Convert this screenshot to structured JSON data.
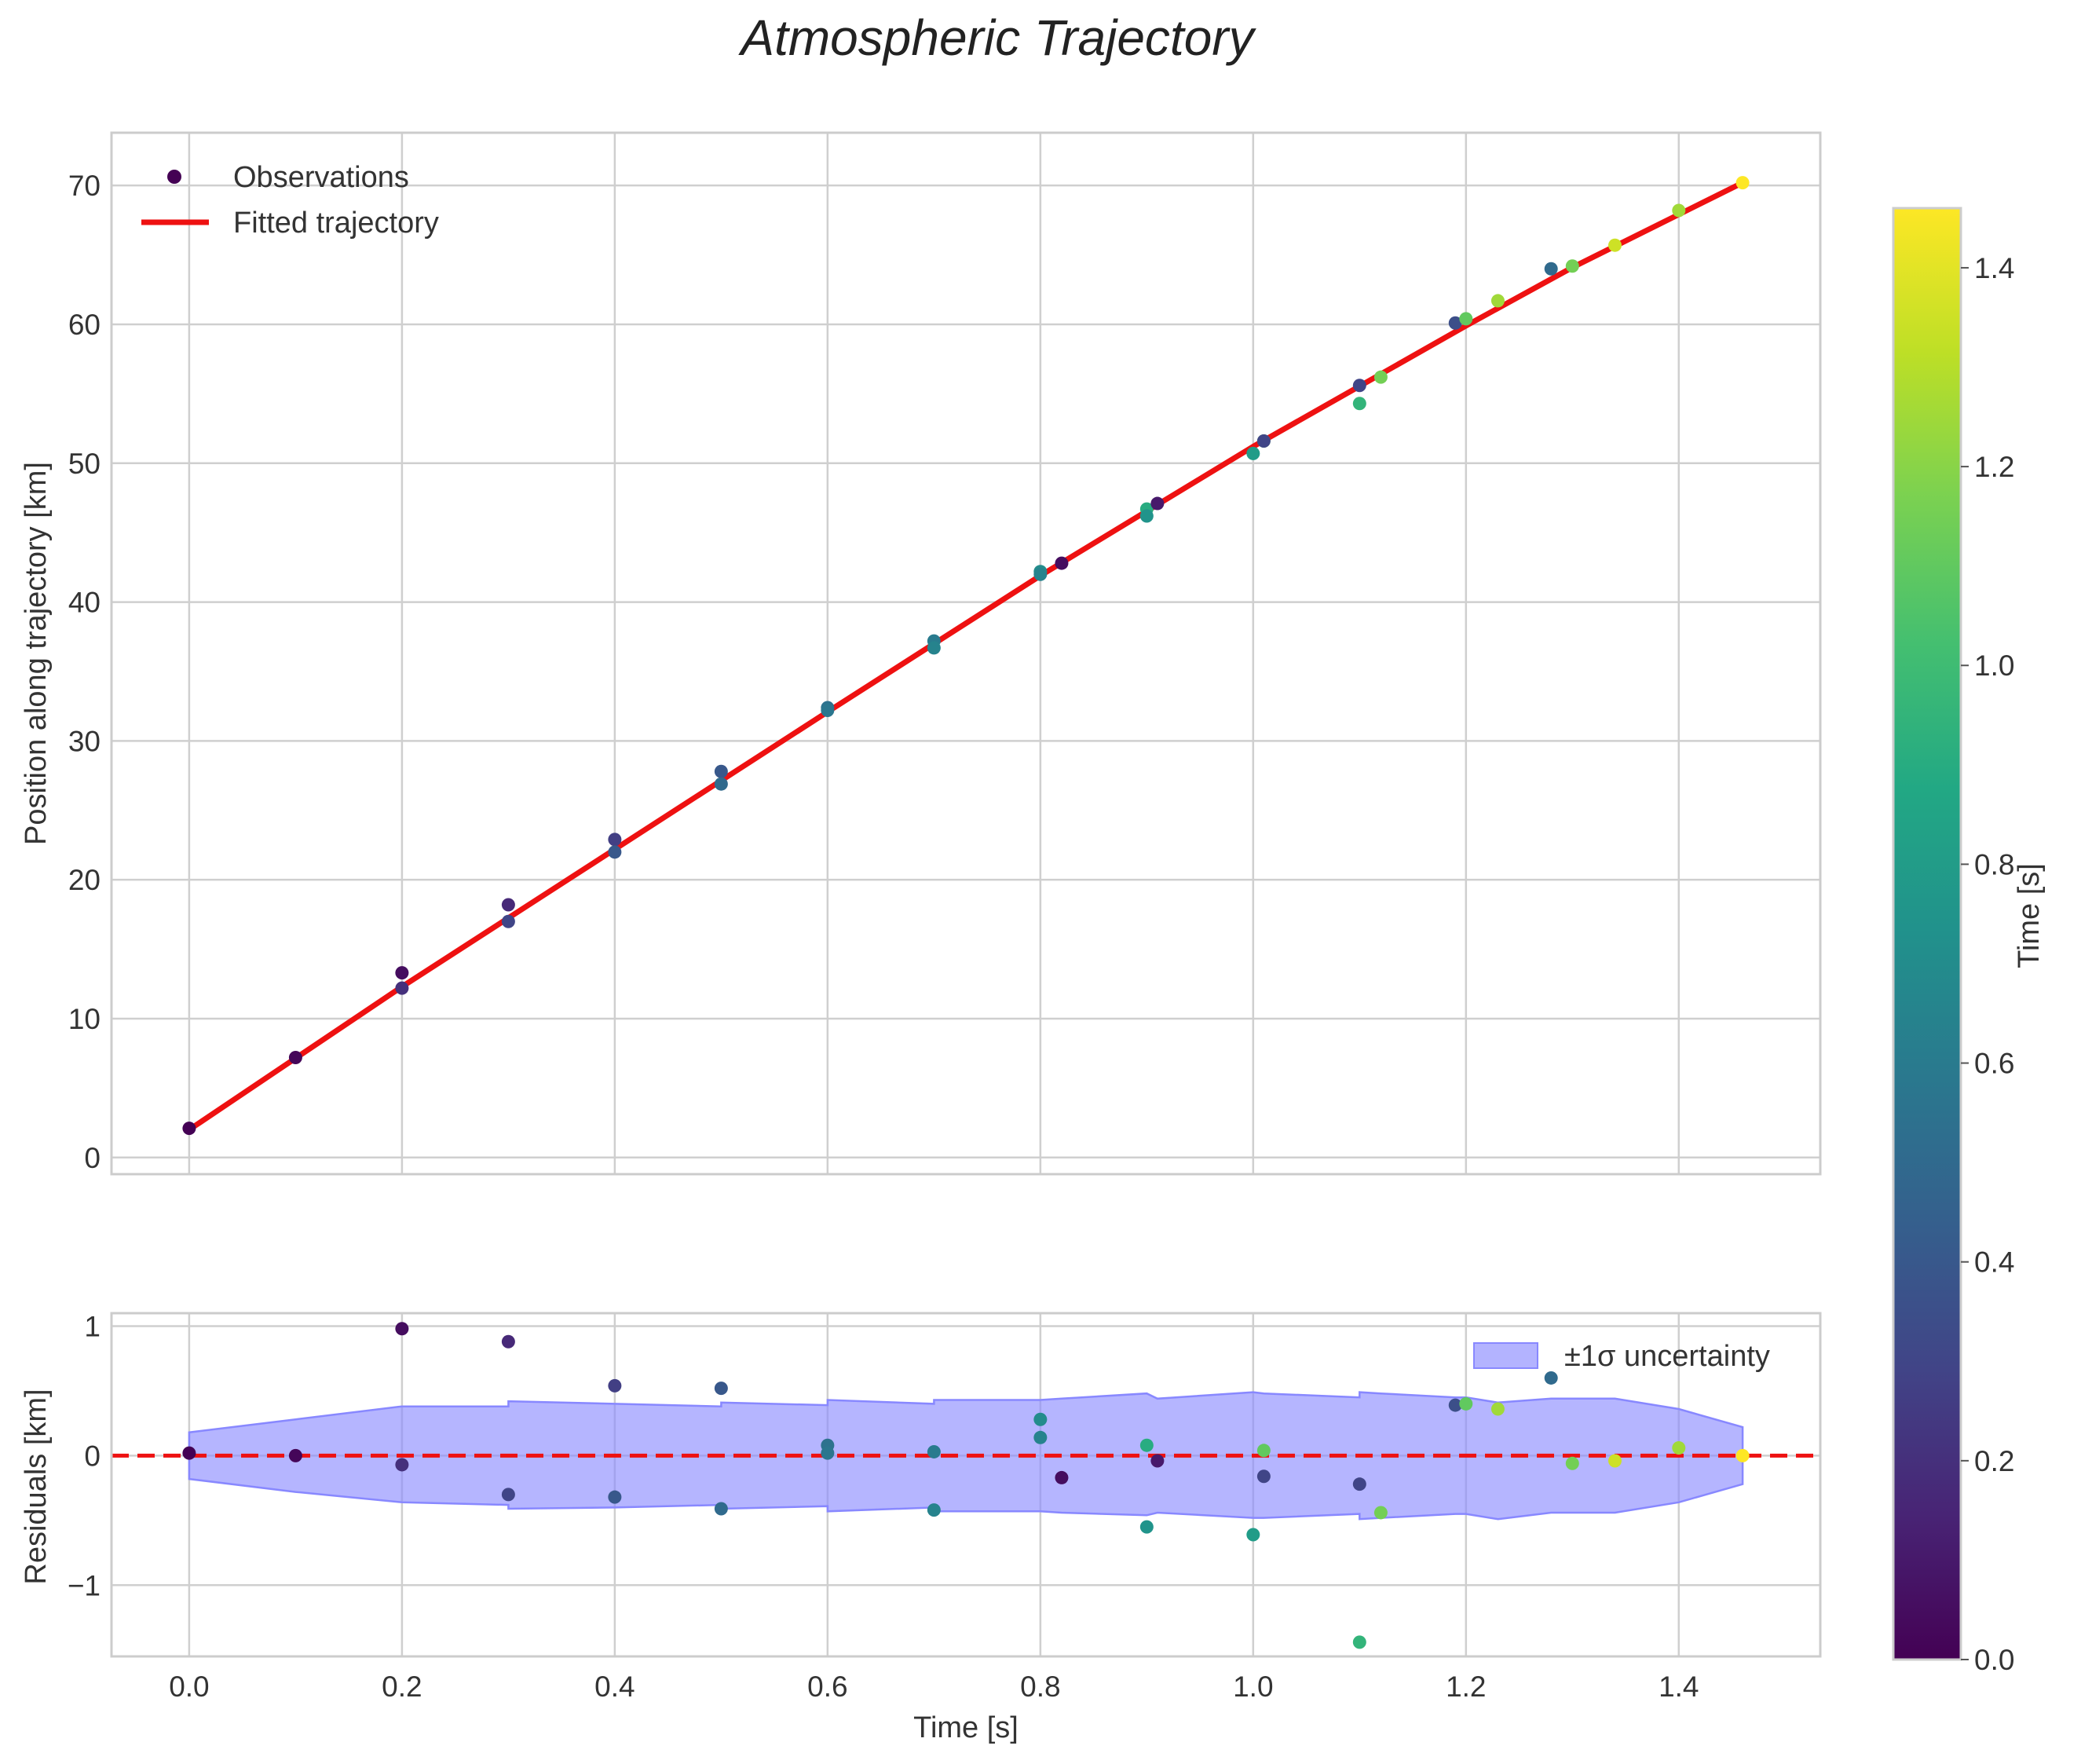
{
  "title": "Atmospheric Trajectory",
  "chart_data": [
    {
      "type": "scatter",
      "panel": "top",
      "ylabel": "Position along trajectory [km]",
      "xlim": [
        -0.073,
        1.533
      ],
      "ylim": [
        -1.2,
        73.8
      ],
      "xticks": [
        0.0,
        0.2,
        0.4,
        0.6,
        0.8,
        1.0,
        1.2,
        1.4
      ],
      "yticks": [
        0,
        10,
        20,
        30,
        40,
        50,
        60,
        70
      ],
      "ytick_labels": [
        "0",
        "10",
        "20",
        "30",
        "40",
        "50",
        "60",
        "70"
      ],
      "grid": true,
      "legend": {
        "position": "upper-left",
        "observations": "Observations",
        "fit": "Fitted trajectory"
      },
      "fit": {
        "name": "Fitted trajectory",
        "color": "#ee1111",
        "x": [
          0.0,
          0.2,
          0.4,
          0.6,
          0.8,
          1.0,
          1.2,
          1.3,
          1.46
        ],
        "y": [
          2.0,
          12.3,
          22.2,
          32.1,
          41.9,
          51.2,
          59.9,
          64.1,
          70.2
        ]
      },
      "observations": {
        "name": "Observations",
        "x": [
          0.0,
          0.1,
          0.2,
          0.2,
          0.3,
          0.3,
          0.4,
          0.4,
          0.5,
          0.5,
          0.6,
          0.6,
          0.7,
          0.7,
          0.8,
          0.8,
          0.82,
          0.9,
          0.9,
          0.91,
          1.0,
          1.01,
          1.01,
          1.1,
          1.1,
          1.12,
          1.19,
          1.2,
          1.23,
          1.28,
          1.3,
          1.34,
          1.4,
          1.46
        ],
        "y": [
          2.1,
          7.2,
          13.3,
          12.2,
          18.2,
          17.0,
          22.9,
          22.0,
          27.8,
          26.9,
          32.4,
          32.2,
          37.2,
          36.7,
          42.2,
          42.0,
          42.8,
          46.7,
          46.2,
          47.1,
          50.7,
          51.6,
          51.6,
          54.3,
          55.6,
          56.2,
          60.1,
          60.4,
          61.7,
          64.0,
          64.2,
          65.7,
          68.2,
          70.2
        ],
        "c": [
          0.0,
          0.02,
          0.05,
          0.2,
          0.17,
          0.3,
          0.27,
          0.4,
          0.4,
          0.5,
          0.55,
          0.57,
          0.6,
          0.65,
          0.7,
          0.65,
          0.05,
          0.9,
          0.75,
          0.1,
          0.8,
          1.1,
          0.3,
          0.95,
          0.3,
          1.15,
          0.35,
          1.1,
          1.25,
          0.5,
          1.15,
          1.35,
          1.25,
          1.46
        ]
      }
    },
    {
      "type": "scatter",
      "panel": "bottom",
      "xlabel": "Time [s]",
      "ylabel": "Residuals [km]",
      "xlim": [
        -0.073,
        1.533
      ],
      "ylim": [
        -1.55,
        1.1
      ],
      "xticks": [
        0.0,
        0.2,
        0.4,
        0.6,
        0.8,
        1.0,
        1.2,
        1.4
      ],
      "xtick_labels": [
        "0.0",
        "0.2",
        "0.4",
        "0.6",
        "0.8",
        "1.0",
        "1.2",
        "1.4"
      ],
      "yticks": [
        -1,
        0,
        1
      ],
      "ytick_labels": [
        "−1",
        "0",
        "1"
      ],
      "grid": true,
      "zero_line": {
        "y": 0,
        "color": "#ee1111",
        "style": "dashed"
      },
      "legend": {
        "position": "upper-right",
        "band": "±1σ uncertainty"
      },
      "band": {
        "name": "±1σ uncertainty",
        "color": "#8888ff",
        "x": [
          0.0,
          0.1,
          0.2,
          0.3,
          0.3,
          0.4,
          0.5,
          0.5,
          0.6,
          0.6,
          0.7,
          0.7,
          0.8,
          0.82,
          0.9,
          0.91,
          1.0,
          1.01,
          1.1,
          1.1,
          1.12,
          1.19,
          1.2,
          1.23,
          1.28,
          1.3,
          1.34,
          1.4,
          1.46
        ],
        "upper": [
          0.18,
          0.28,
          0.38,
          0.38,
          0.42,
          0.4,
          0.38,
          0.41,
          0.39,
          0.43,
          0.4,
          0.43,
          0.43,
          0.44,
          0.48,
          0.44,
          0.49,
          0.48,
          0.45,
          0.49,
          0.48,
          0.45,
          0.45,
          0.41,
          0.44,
          0.44,
          0.44,
          0.36,
          0.22
        ],
        "lower": [
          -0.18,
          -0.28,
          -0.36,
          -0.38,
          -0.41,
          -0.4,
          -0.38,
          -0.41,
          -0.39,
          -0.43,
          -0.4,
          -0.43,
          -0.43,
          -0.44,
          -0.46,
          -0.44,
          -0.48,
          -0.48,
          -0.45,
          -0.49,
          -0.48,
          -0.45,
          -0.45,
          -0.49,
          -0.44,
          -0.44,
          -0.44,
          -0.36,
          -0.22
        ]
      },
      "residuals": {
        "x": [
          0.0,
          0.1,
          0.2,
          0.2,
          0.3,
          0.3,
          0.4,
          0.4,
          0.5,
          0.5,
          0.6,
          0.6,
          0.7,
          0.7,
          0.8,
          0.8,
          0.82,
          0.9,
          0.9,
          0.91,
          1.0,
          1.01,
          1.01,
          1.1,
          1.1,
          1.12,
          1.19,
          1.2,
          1.23,
          1.28,
          1.3,
          1.34,
          1.4,
          1.46
        ],
        "y": [
          0.02,
          0.0,
          0.98,
          -0.07,
          0.88,
          -0.3,
          0.54,
          -0.32,
          0.52,
          -0.41,
          0.08,
          0.02,
          0.03,
          -0.42,
          0.28,
          0.14,
          -0.17,
          0.08,
          -0.55,
          -0.04,
          -0.61,
          0.04,
          -0.16,
          -1.44,
          -0.22,
          -0.44,
          0.39,
          0.4,
          0.36,
          0.6,
          -0.06,
          -0.04,
          0.06,
          0.0
        ],
        "c": [
          0.0,
          0.02,
          0.05,
          0.2,
          0.17,
          0.3,
          0.27,
          0.4,
          0.4,
          0.5,
          0.55,
          0.57,
          0.6,
          0.65,
          0.7,
          0.65,
          0.05,
          0.9,
          0.75,
          0.1,
          0.8,
          1.1,
          0.3,
          0.95,
          0.3,
          1.15,
          0.35,
          1.1,
          1.25,
          0.5,
          1.15,
          1.35,
          1.25,
          1.46
        ]
      }
    }
  ],
  "colorbar": {
    "label": "Time [s]",
    "cmap": "viridis",
    "range": [
      0.0,
      1.46
    ],
    "ticks": [
      0.0,
      0.2,
      0.4,
      0.6,
      0.8,
      1.0,
      1.2,
      1.4
    ],
    "tick_labels": [
      "0.0",
      "0.2",
      "0.4",
      "0.6",
      "0.8",
      "1.0",
      "1.2",
      "1.4"
    ]
  },
  "colors": {
    "legend_observation_marker": "#440154",
    "fit_line": "#ee1111",
    "band_fill": "#8888ff"
  }
}
